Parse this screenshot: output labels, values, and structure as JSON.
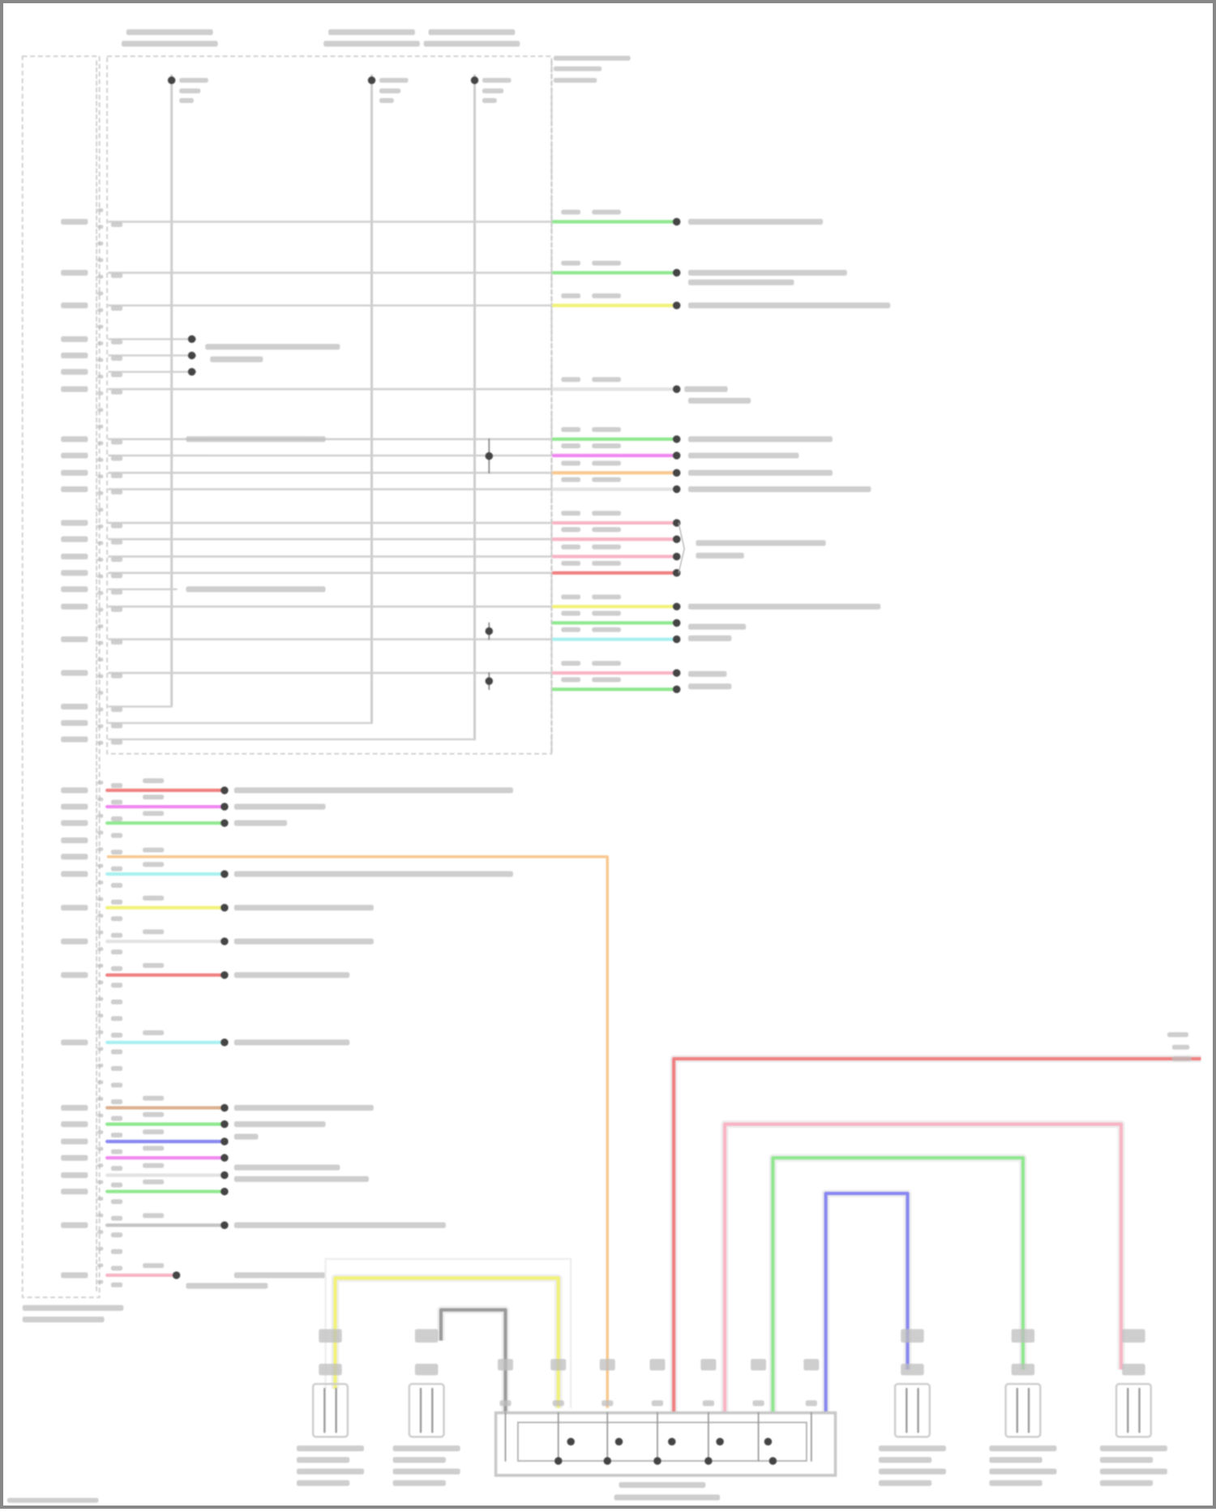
{
  "diagram": {
    "type": "wiring-diagram",
    "labels_legible": false,
    "wire_colors": {
      "green": "#8fe88f",
      "yellow": "#f2f27a",
      "magenta": "#f088f0",
      "orange": "#f8c890",
      "pink": "#f8b4c4",
      "red": "#f08080",
      "cyan": "#a8f0f0",
      "blue": "#8888f0",
      "brown": "#dcb090",
      "lightgray": "#e2e2e2",
      "gray": "#c4c4c4",
      "darkgray": "#9a9a9a"
    },
    "upper_right_wires": [
      "green",
      "green",
      "yellow",
      "lightgray",
      "green",
      "magenta",
      "orange",
      "lightgray",
      "pink",
      "pink",
      "pink",
      "red",
      "yellow",
      "green",
      "cyan",
      "pink",
      "green"
    ],
    "lower_left_wires": [
      "red",
      "magenta",
      "green",
      "cyan",
      "yellow",
      "lightgray",
      "red",
      "cyan",
      "brown",
      "green",
      "blue",
      "magenta",
      "lightgray",
      "green",
      "gray",
      "pink"
    ]
  }
}
